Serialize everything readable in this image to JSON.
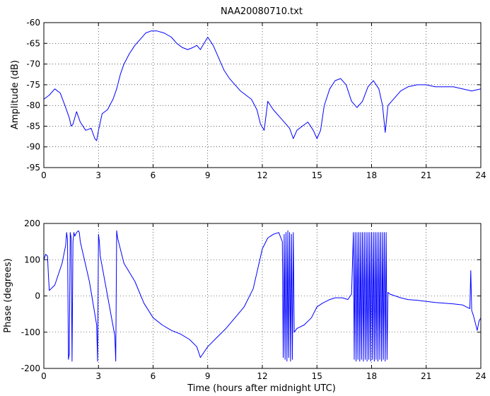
{
  "chart_data": [
    {
      "type": "line",
      "title": "NAA20080710.txt",
      "xlabel": "",
      "ylabel": "Amplitude (dB)",
      "xlim": [
        0,
        24
      ],
      "ylim": [
        -95,
        -60
      ],
      "xticks": [
        0,
        3,
        6,
        9,
        12,
        15,
        18,
        21,
        24
      ],
      "yticks": [
        -95,
        -90,
        -85,
        -80,
        -75,
        -70,
        -65,
        -60
      ],
      "grid": true,
      "series": [
        {
          "color": "#0000ff",
          "x": [
            0,
            0.3,
            0.6,
            0.9,
            1.2,
            1.4,
            1.5,
            1.6,
            1.8,
            2.0,
            2.3,
            2.6,
            2.8,
            2.9,
            3.0,
            3.2,
            3.5,
            3.8,
            4.0,
            4.2,
            4.4,
            4.7,
            5.0,
            5.3,
            5.6,
            5.9,
            6.2,
            6.6,
            7.0,
            7.3,
            7.6,
            7.9,
            8.2,
            8.4,
            8.6,
            8.8,
            9.0,
            9.3,
            9.6,
            9.9,
            10.2,
            10.5,
            10.8,
            11.1,
            11.4,
            11.7,
            11.9,
            12.1,
            12.3,
            12.6,
            12.9,
            13.2,
            13.5,
            13.7,
            13.9,
            14.2,
            14.5,
            14.8,
            15.0,
            15.2,
            15.4,
            15.7,
            16.0,
            16.3,
            16.6,
            16.9,
            17.2,
            17.5,
            17.8,
            18.1,
            18.4,
            18.6,
            18.75,
            18.9,
            19.2,
            19.6,
            20.0,
            20.5,
            21.0,
            21.5,
            22.0,
            22.5,
            23.0,
            23.5,
            24.0
          ],
          "y": [
            -78.5,
            -77.5,
            -76.0,
            -77.0,
            -80.5,
            -83.0,
            -85.0,
            -84.5,
            -81.5,
            -84.0,
            -86.0,
            -85.5,
            -88.0,
            -88.5,
            -86.0,
            -82.0,
            -81.0,
            -78.5,
            -76.0,
            -72.5,
            -70.0,
            -67.5,
            -65.5,
            -64.0,
            -62.5,
            -62.0,
            -62.0,
            -62.5,
            -63.5,
            -65.0,
            -66.0,
            -66.5,
            -66.0,
            -65.5,
            -66.5,
            -65.0,
            -63.5,
            -65.5,
            -68.5,
            -71.5,
            -73.5,
            -75.0,
            -76.5,
            -77.5,
            -78.5,
            -81.0,
            -84.5,
            -86.0,
            -79.0,
            -81.0,
            -82.5,
            -84.0,
            -85.5,
            -88.0,
            -86.0,
            -85.0,
            -84.0,
            -86.0,
            -88.0,
            -86.0,
            -80.0,
            -76.0,
            -74.0,
            -73.5,
            -75.0,
            -79.0,
            -80.5,
            -79.0,
            -75.5,
            -74.0,
            -76.0,
            -80.0,
            -86.5,
            -80.0,
            -78.5,
            -76.5,
            -75.5,
            -75.0,
            -75.0,
            -75.5,
            -75.5,
            -75.5,
            -76.0,
            -76.5,
            -76.0
          ]
        }
      ]
    },
    {
      "type": "line",
      "title": "",
      "xlabel": "Time (hours after midnight UTC)",
      "ylabel": "Phase (degrees)",
      "xlim": [
        0,
        24
      ],
      "ylim": [
        -200,
        200
      ],
      "xticks": [
        0,
        3,
        6,
        9,
        12,
        15,
        18,
        21,
        24
      ],
      "yticks": [
        -200,
        -100,
        0,
        100,
        200
      ],
      "grid": true,
      "series": [
        {
          "color": "#0000ff",
          "x": [
            0,
            0.1,
            0.2,
            0.25,
            0.3,
            0.6,
            1.0,
            1.2,
            1.25,
            1.3,
            1.35,
            1.4,
            1.45,
            1.5,
            1.55,
            1.6,
            1.65,
            1.7,
            1.8,
            1.9,
            1.95,
            2.0,
            2.5,
            2.9,
            2.95,
            3.0,
            3.05,
            3.1,
            3.5,
            3.9,
            3.95,
            4.0,
            4.05,
            4.4,
            5.0,
            5.5,
            6.0,
            6.5,
            7.0,
            7.5,
            8.0,
            8.4,
            8.6,
            8.8,
            9.0,
            9.5,
            10.0,
            10.5,
            11.0,
            11.5,
            12.0,
            12.3,
            12.6,
            12.9,
            13.1,
            13.15,
            13.2,
            13.25,
            13.3,
            13.35,
            13.4,
            13.45,
            13.5,
            13.55,
            13.6,
            13.65,
            13.7,
            13.75,
            13.9,
            14.3,
            14.7,
            15.0,
            15.3,
            15.7,
            16.0,
            16.4,
            16.7,
            16.9,
            17.0,
            17.05,
            17.1,
            17.15,
            17.2,
            17.25,
            17.3,
            17.35,
            17.4,
            17.45,
            17.5,
            17.55,
            17.6,
            17.65,
            17.7,
            17.75,
            17.8,
            17.85,
            17.9,
            17.95,
            18.0,
            18.05,
            18.1,
            18.15,
            18.2,
            18.25,
            18.3,
            18.35,
            18.4,
            18.45,
            18.5,
            18.55,
            18.6,
            18.65,
            18.7,
            18.75,
            18.8,
            18.85,
            18.9,
            19.0,
            19.3,
            19.6,
            20.0,
            20.5,
            21.0,
            21.5,
            22.0,
            22.5,
            23.0,
            23.2,
            23.4,
            23.45,
            23.5,
            23.6,
            23.8,
            23.9,
            24.0
          ],
          "y": [
            100,
            115,
            110,
            60,
            15,
            30,
            90,
            140,
            175,
            155,
            -175,
            -160,
            175,
            160,
            -180,
            150,
            175,
            165,
            175,
            180,
            175,
            150,
            40,
            -80,
            -180,
            170,
            150,
            110,
            0,
            -110,
            -180,
            180,
            160,
            90,
            40,
            -20,
            -60,
            -80,
            -95,
            -105,
            -120,
            -140,
            -170,
            -155,
            -140,
            -115,
            -90,
            -60,
            -30,
            20,
            130,
            160,
            170,
            175,
            150,
            -170,
            170,
            -175,
            175,
            -180,
            180,
            -170,
            175,
            -180,
            170,
            -175,
            175,
            -100,
            -90,
            -80,
            -60,
            -30,
            -20,
            -10,
            -5,
            -5,
            -10,
            5,
            175,
            -175,
            175,
            -180,
            175,
            -175,
            175,
            -180,
            175,
            -175,
            175,
            -180,
            175,
            -175,
            175,
            -180,
            175,
            -175,
            175,
            -180,
            175,
            -175,
            175,
            -180,
            175,
            -175,
            175,
            -180,
            175,
            -175,
            175,
            -180,
            175,
            -175,
            175,
            -180,
            175,
            -175,
            10,
            5,
            0,
            -5,
            -10,
            -12,
            -15,
            -18,
            -20,
            -22,
            -25,
            -30,
            -35,
            70,
            -40,
            -55,
            -95,
            -70,
            -60
          ]
        }
      ]
    }
  ]
}
